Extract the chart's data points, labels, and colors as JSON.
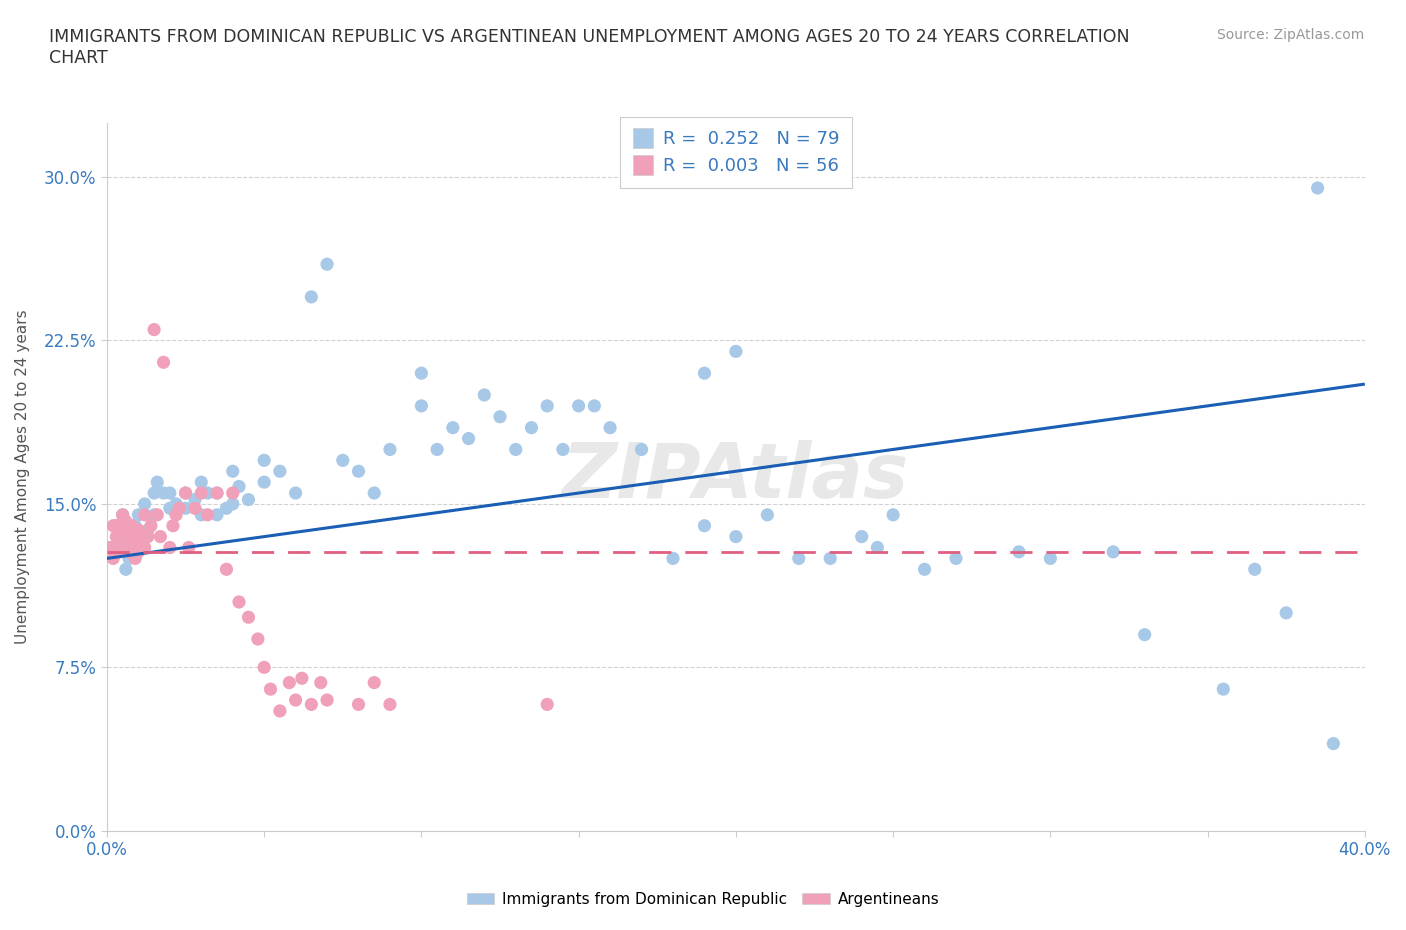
{
  "title": "IMMIGRANTS FROM DOMINICAN REPUBLIC VS ARGENTINEAN UNEMPLOYMENT AMONG AGES 20 TO 24 YEARS CORRELATION\nCHART",
  "source_text": "Source: ZipAtlas.com",
  "ylabel": "Unemployment Among Ages 20 to 24 years",
  "xlim": [
    0.0,
    0.4
  ],
  "ylim": [
    0.0,
    0.325
  ],
  "ytick_labels": [
    "0.0%",
    "7.5%",
    "15.0%",
    "22.5%",
    "30.0%"
  ],
  "xtick_labels": [
    "0.0%",
    "",
    "",
    "",
    "",
    "",
    "",
    "",
    "40.0%"
  ],
  "blue_color": "#a8c8e8",
  "pink_color": "#f0a0b8",
  "blue_line_color": "#1a5fb5",
  "pink_line_color": "#e06080",
  "watermark": "ZIPAtlas",
  "blue_R": 0.252,
  "blue_N": 79,
  "pink_R": 0.003,
  "pink_N": 56,
  "blue_x": [
    0.002,
    0.003,
    0.004,
    0.005,
    0.006,
    0.007,
    0.008,
    0.009,
    0.01,
    0.01,
    0.012,
    0.013,
    0.015,
    0.015,
    0.016,
    0.018,
    0.02,
    0.02,
    0.022,
    0.025,
    0.025,
    0.028,
    0.03,
    0.03,
    0.032,
    0.035,
    0.035,
    0.038,
    0.04,
    0.04,
    0.042,
    0.045,
    0.05,
    0.05,
    0.055,
    0.06,
    0.065,
    0.07,
    0.075,
    0.08,
    0.085,
    0.09,
    0.1,
    0.1,
    0.105,
    0.11,
    0.115,
    0.12,
    0.125,
    0.13,
    0.135,
    0.14,
    0.145,
    0.15,
    0.155,
    0.16,
    0.17,
    0.18,
    0.19,
    0.2,
    0.21,
    0.22,
    0.23,
    0.24,
    0.245,
    0.25,
    0.26,
    0.27,
    0.29,
    0.3,
    0.32,
    0.33,
    0.355,
    0.365,
    0.375,
    0.385,
    0.39,
    0.19,
    0.2
  ],
  "blue_y": [
    0.13,
    0.14,
    0.135,
    0.145,
    0.12,
    0.125,
    0.13,
    0.14,
    0.145,
    0.135,
    0.15,
    0.138,
    0.155,
    0.145,
    0.16,
    0.155,
    0.148,
    0.155,
    0.15,
    0.155,
    0.148,
    0.152,
    0.16,
    0.145,
    0.155,
    0.145,
    0.155,
    0.148,
    0.15,
    0.165,
    0.158,
    0.152,
    0.17,
    0.16,
    0.165,
    0.155,
    0.245,
    0.26,
    0.17,
    0.165,
    0.155,
    0.175,
    0.195,
    0.21,
    0.175,
    0.185,
    0.18,
    0.2,
    0.19,
    0.175,
    0.185,
    0.195,
    0.175,
    0.195,
    0.195,
    0.185,
    0.175,
    0.125,
    0.14,
    0.135,
    0.145,
    0.125,
    0.125,
    0.135,
    0.13,
    0.145,
    0.12,
    0.125,
    0.128,
    0.125,
    0.128,
    0.09,
    0.065,
    0.12,
    0.1,
    0.295,
    0.04,
    0.21,
    0.22
  ],
  "pink_x": [
    0.001,
    0.002,
    0.002,
    0.003,
    0.003,
    0.004,
    0.004,
    0.005,
    0.005,
    0.006,
    0.006,
    0.007,
    0.007,
    0.008,
    0.008,
    0.009,
    0.009,
    0.01,
    0.01,
    0.011,
    0.012,
    0.012,
    0.013,
    0.014,
    0.015,
    0.016,
    0.017,
    0.018,
    0.02,
    0.021,
    0.022,
    0.023,
    0.025,
    0.026,
    0.028,
    0.03,
    0.032,
    0.035,
    0.038,
    0.04,
    0.042,
    0.045,
    0.048,
    0.05,
    0.052,
    0.055,
    0.058,
    0.06,
    0.062,
    0.065,
    0.068,
    0.07,
    0.08,
    0.085,
    0.09,
    0.14
  ],
  "pink_y": [
    0.13,
    0.125,
    0.14,
    0.135,
    0.14,
    0.128,
    0.138,
    0.132,
    0.145,
    0.135,
    0.142,
    0.128,
    0.138,
    0.13,
    0.14,
    0.125,
    0.135,
    0.128,
    0.138,
    0.132,
    0.13,
    0.145,
    0.135,
    0.14,
    0.23,
    0.145,
    0.135,
    0.215,
    0.13,
    0.14,
    0.145,
    0.148,
    0.155,
    0.13,
    0.148,
    0.155,
    0.145,
    0.155,
    0.12,
    0.155,
    0.105,
    0.098,
    0.088,
    0.075,
    0.065,
    0.055,
    0.068,
    0.06,
    0.07,
    0.058,
    0.068,
    0.06,
    0.058,
    0.068,
    0.058,
    0.058
  ],
  "blue_line_x0": 0.0,
  "blue_line_y0": 0.125,
  "blue_line_x1": 0.4,
  "blue_line_y1": 0.205,
  "pink_line_x0": 0.0,
  "pink_line_y0": 0.128,
  "pink_line_x1": 0.4,
  "pink_line_y1": 0.128
}
